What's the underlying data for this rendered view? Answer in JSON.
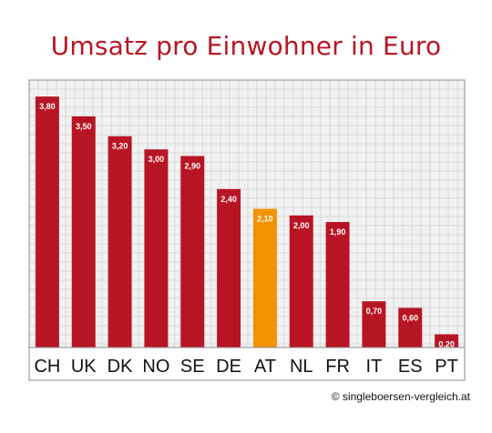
{
  "credit": "© singleboersen-vergleich.at",
  "colors": {
    "bar": "#b81524",
    "highlight": "#f39200",
    "title": "#b81524",
    "grid": "#d9d9d9",
    "plot_bg": "#f1f1f1"
  },
  "chart_data": {
    "type": "bar",
    "title": "Umsatz pro Einwohner in Euro",
    "xlabel": "",
    "ylabel": "",
    "categories": [
      "CH",
      "UK",
      "DK",
      "NO",
      "SE",
      "DE",
      "AT",
      "NL",
      "FR",
      "IT",
      "ES",
      "PT"
    ],
    "values": [
      3.8,
      3.5,
      3.2,
      3.0,
      2.9,
      2.4,
      2.1,
      2.0,
      1.9,
      0.7,
      0.6,
      0.2
    ],
    "data_labels": [
      "3,80",
      "3,50",
      "3,20",
      "3,00",
      "2,90",
      "2,40",
      "2,10",
      "2,00",
      "1,90",
      "0,70",
      "0,60",
      "0,20"
    ],
    "highlight_category": "AT",
    "ylim": [
      0,
      4.05
    ],
    "grid": true,
    "legend": "none"
  }
}
